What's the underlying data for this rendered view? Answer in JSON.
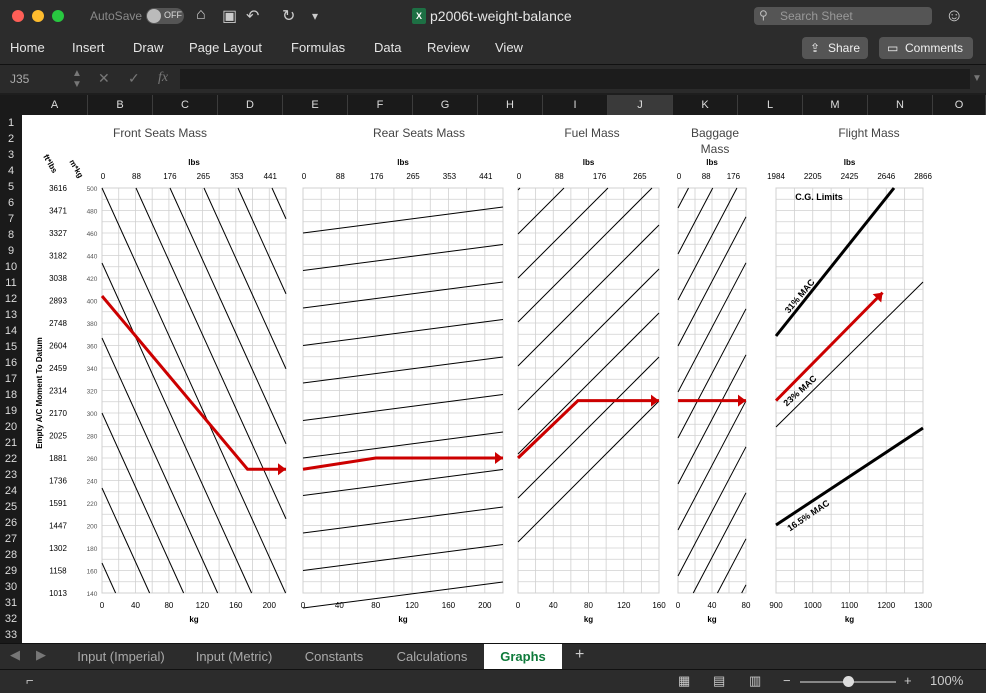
{
  "window": {
    "autosave_label": "AutoSave",
    "autosave_state": "OFF",
    "title": "p2006t-weight-balance",
    "search_placeholder": "Search Sheet"
  },
  "ribbon": {
    "tabs": [
      "Home",
      "Insert",
      "Draw",
      "Page Layout",
      "Formulas",
      "Data",
      "Review",
      "View"
    ],
    "share_label": "Share",
    "comments_label": "Comments"
  },
  "formula_bar": {
    "name_box": "J35",
    "fx_label": "fx",
    "formula": ""
  },
  "columns": [
    "A",
    "B",
    "C",
    "D",
    "E",
    "F",
    "G",
    "H",
    "I",
    "J",
    "K",
    "L",
    "M",
    "N",
    "O"
  ],
  "selected_column": "J",
  "rows": [
    "1",
    "2",
    "3",
    "4",
    "5",
    "6",
    "7",
    "8",
    "9",
    "10",
    "11",
    "12",
    "13",
    "14",
    "15",
    "16",
    "17",
    "18",
    "19",
    "20",
    "21",
    "22",
    "23",
    "24",
    "25",
    "26",
    "27",
    "28",
    "29",
    "30",
    "31",
    "32",
    "33"
  ],
  "sheet_tabs": [
    "Input (Imperial)",
    "Input (Metric)",
    "Constants",
    "Calculations",
    "Graphs"
  ],
  "active_sheet": "Graphs",
  "status": {
    "zoom": "100%"
  },
  "colors": {
    "accent_green": "#0e7a3a",
    "line_red": "#cc0000"
  },
  "chart_data": [
    {
      "type": "line",
      "title": "Front Seats Mass",
      "axis_unit_top": "lbs",
      "axis_unit_bottom": "kg",
      "top_ticks": [
        "0",
        "88",
        "176",
        "265",
        "353",
        "441"
      ],
      "bottom_ticks": [
        "0",
        "40",
        "80",
        "120",
        "160",
        "200"
      ],
      "left_outer_label": "ft*lbs",
      "left_inner_label": "m*kg",
      "ylabel": "Empty A/C Moment To Datum",
      "y_ticks_ftlbs": [
        "3616",
        "3471",
        "3327",
        "3182",
        "3038",
        "2893",
        "2748",
        "2604",
        "2459",
        "2314",
        "2170",
        "2025",
        "1881",
        "1736",
        "1591",
        "1447",
        "1302",
        "1158",
        "1013"
      ],
      "y_ticks_mkg": [
        "500",
        "480",
        "460",
        "440",
        "420",
        "400",
        "380",
        "360",
        "340",
        "320",
        "300",
        "280",
        "260",
        "240",
        "220",
        "200",
        "180",
        "160",
        "140"
      ],
      "xlim_kg": [
        0,
        220
      ],
      "ylim_mkg": [
        140,
        500
      ],
      "path": {
        "points": [
          [
            0,
            404
          ],
          [
            174,
            250
          ],
          [
            220,
            250
          ]
        ]
      }
    },
    {
      "type": "line",
      "title": "Rear Seats Mass",
      "axis_unit_top": "lbs",
      "axis_unit_bottom": "kg",
      "top_ticks": [
        "0",
        "88",
        "176",
        "265",
        "353",
        "441"
      ],
      "bottom_ticks": [
        "0",
        "40",
        "80",
        "120",
        "160",
        "200"
      ],
      "xlim_kg": [
        0,
        220
      ],
      "path": {
        "points": [
          [
            0,
            250
          ],
          [
            80,
            260
          ],
          [
            220,
            260
          ]
        ]
      }
    },
    {
      "type": "line",
      "title": "Fuel Mass",
      "axis_unit_top": "lbs",
      "axis_unit_bottom": "kg",
      "top_ticks": [
        "0",
        "88",
        "176",
        "265"
      ],
      "bottom_ticks": [
        "0",
        "40",
        "80",
        "120",
        "160"
      ],
      "xlim_kg": [
        0,
        160
      ],
      "path": {
        "points": [
          [
            0,
            260
          ],
          [
            68,
            311
          ],
          [
            160,
            311
          ]
        ]
      }
    },
    {
      "type": "line",
      "title": "Baggage Mass",
      "axis_unit_top": "lbs",
      "axis_unit_bottom": "kg",
      "top_ticks": [
        "0",
        "88",
        "176"
      ],
      "bottom_ticks": [
        "0",
        "40",
        "80"
      ],
      "xlim_kg": [
        0,
        80
      ],
      "path": {
        "points": [
          [
            0,
            311
          ],
          [
            80,
            311
          ]
        ]
      }
    },
    {
      "type": "line",
      "title": "Flight Mass",
      "axis_unit_top": "lbs",
      "axis_unit_bottom": "kg",
      "top_ticks": [
        "1984",
        "2205",
        "2425",
        "2646",
        "2866"
      ],
      "bottom_ticks": [
        "900",
        "1000",
        "1100",
        "1200",
        "1300"
      ],
      "xlim_kg": [
        900,
        1300
      ],
      "annotations": [
        "C.G. Limits",
        "31% MAC",
        "23% MAC",
        "16.5% MAC"
      ],
      "path": {
        "points": [
          [
            900,
            311
          ],
          [
            1190,
            407
          ]
        ]
      }
    }
  ]
}
